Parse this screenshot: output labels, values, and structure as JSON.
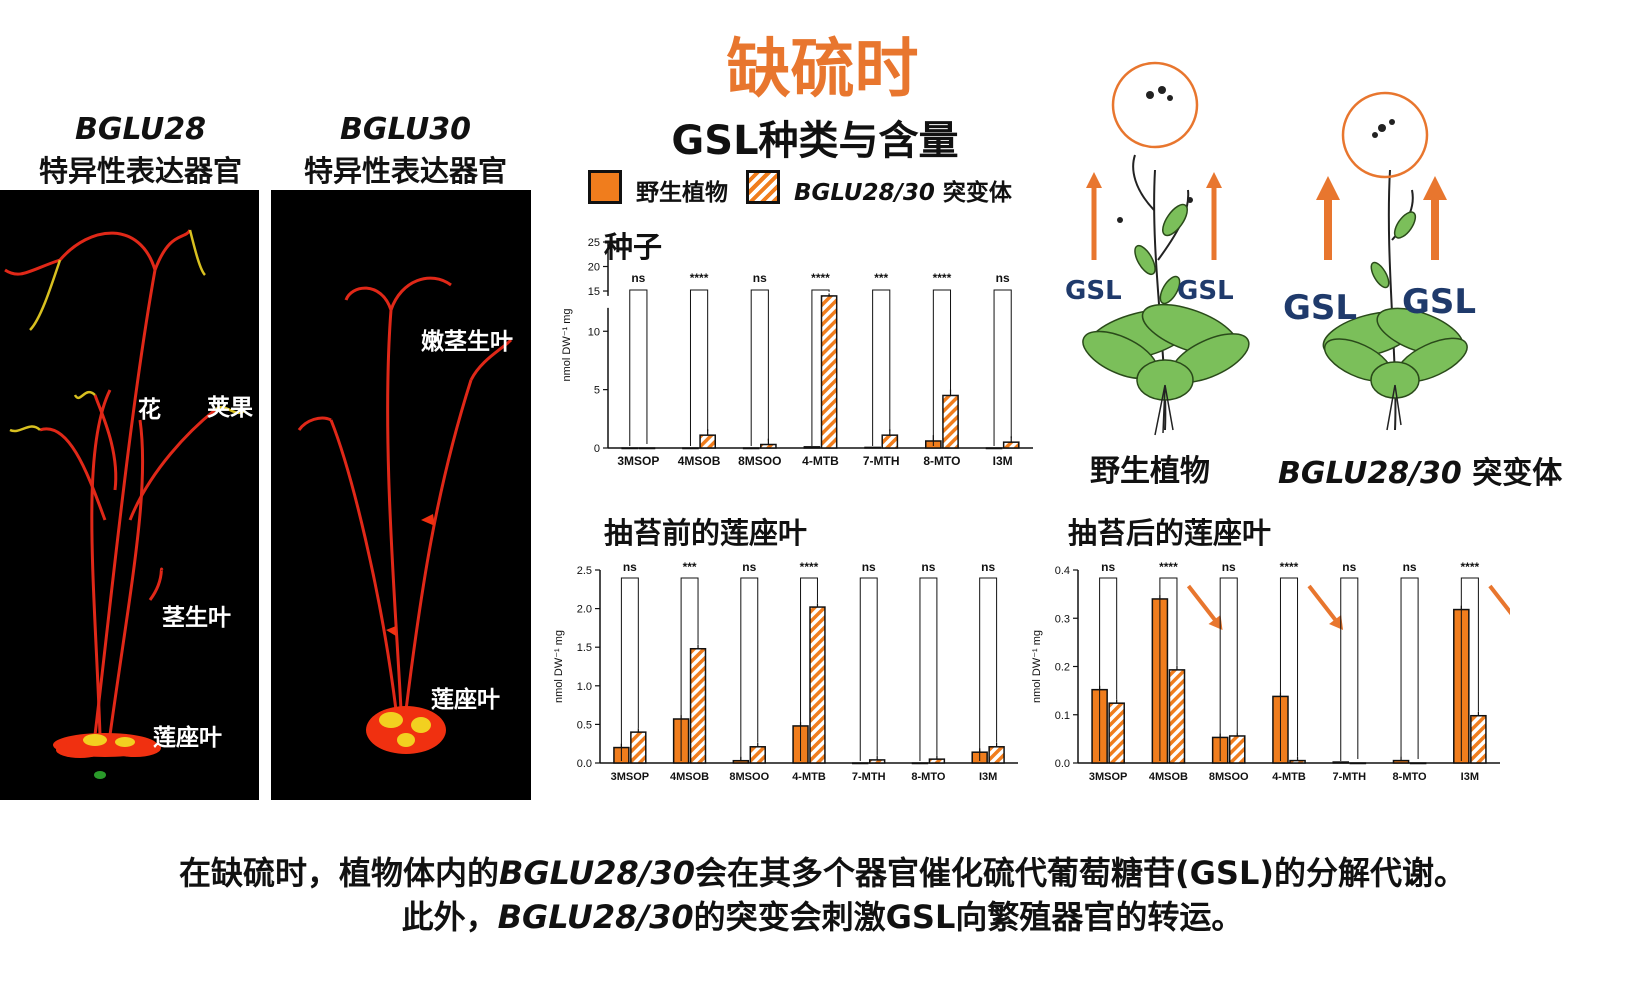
{
  "title": "缺硫时",
  "colors": {
    "accent": "#e8762e",
    "wild": "#f07d1d",
    "mutant_stripe": "#f07d1d",
    "photo_bg": "#000000",
    "gsl_text": "#1f3a6b",
    "leaf": "#7bbf5a"
  },
  "panels": [
    {
      "gene": "BGLU28",
      "subtitle": "特异性表达器官",
      "labels": [
        "花",
        "荚果",
        "茎生叶",
        "莲座叶"
      ]
    },
    {
      "gene": "BGLU30",
      "subtitle": "特异性表达器官",
      "labels": [
        "嫩茎生叶",
        "莲座叶"
      ]
    }
  ],
  "gsl_heading": "GSL种类与含量",
  "legend": {
    "wild": "野生植物",
    "mutant_gene": "BGLU28/30",
    "mutant_suffix": " 突变体"
  },
  "diagram": {
    "left_label": "野生植物",
    "right_gene": "BGLU28/30",
    "right_suffix": " 突变体",
    "gsl": "GSL"
  },
  "caption": {
    "l1_a": "在缺硫时，植物体内的",
    "l1_gene": "BGLU28/30",
    "l1_b": "会在其多个器官催化硫代葡萄糖苷(GSL)的分解代谢。",
    "l2_a": "此外，",
    "l2_gene": "BGLU28/30",
    "l2_b": "的突变会刺激GSL向繁殖器官的转运。"
  },
  "chart_data": [
    {
      "type": "bar",
      "title": "种子",
      "ylabel": "nmol DW⁻¹ mg",
      "ylim": [
        0,
        25
      ],
      "axis_break": [
        12,
        14
      ],
      "yticks": [
        0,
        5,
        10,
        15,
        20,
        25
      ],
      "categories": [
        "3MSOP",
        "4MSOB",
        "8MSOO",
        "4-MTB",
        "7-MTH",
        "8-MTO",
        "I3M"
      ],
      "series": [
        {
          "name": "野生植物",
          "values": [
            0.0,
            0.0,
            0.0,
            0.1,
            0.05,
            0.6,
            0.0
          ]
        },
        {
          "name": "BGLU28/30 突变体",
          "values": [
            0.0,
            1.1,
            0.3,
            14.0,
            1.1,
            4.5,
            0.5
          ]
        }
      ],
      "significance": [
        "ns",
        "****",
        "ns",
        "****",
        "***",
        "****",
        "ns"
      ]
    },
    {
      "type": "bar",
      "title": "抽苔前的莲座叶",
      "ylabel": "nmol DW⁻¹ mg",
      "ylim": [
        0,
        2.5
      ],
      "yticks": [
        0.0,
        0.5,
        1.0,
        1.5,
        2.0,
        2.5
      ],
      "categories": [
        "3MSOP",
        "4MSOB",
        "8MSOO",
        "4-MTB",
        "7-MTH",
        "8-MTO",
        "I3M"
      ],
      "series": [
        {
          "name": "野生植物",
          "values": [
            0.2,
            0.57,
            0.03,
            0.48,
            0.0,
            0.0,
            0.14
          ]
        },
        {
          "name": "BGLU28/30 突变体",
          "values": [
            0.4,
            1.48,
            0.21,
            2.02,
            0.04,
            0.05,
            0.21
          ]
        }
      ],
      "significance": [
        "ns",
        "***",
        "ns",
        "****",
        "ns",
        "ns",
        "ns"
      ]
    },
    {
      "type": "bar",
      "title": "抽苔后的莲座叶",
      "ylabel": "nmol DW⁻¹ mg",
      "ylim": [
        0,
        0.4
      ],
      "yticks": [
        0.0,
        0.1,
        0.2,
        0.3,
        0.4
      ],
      "categories": [
        "3MSOP",
        "4MSOB",
        "8MSOO",
        "4-MTB",
        "7-MTH",
        "8-MTO",
        "I3M"
      ],
      "series": [
        {
          "name": "野生植物",
          "values": [
            0.152,
            0.34,
            0.053,
            0.138,
            0.002,
            0.005,
            0.318
          ]
        },
        {
          "name": "BGLU28/30 突变体",
          "values": [
            0.124,
            0.193,
            0.056,
            0.005,
            0.0,
            0.0,
            0.098
          ]
        }
      ],
      "significance": [
        "ns",
        "****",
        "ns",
        "****",
        "ns",
        "ns",
        "****"
      ],
      "decrease_arrows": [
        "4MSOB",
        "4-MTB",
        "I3M"
      ]
    }
  ]
}
